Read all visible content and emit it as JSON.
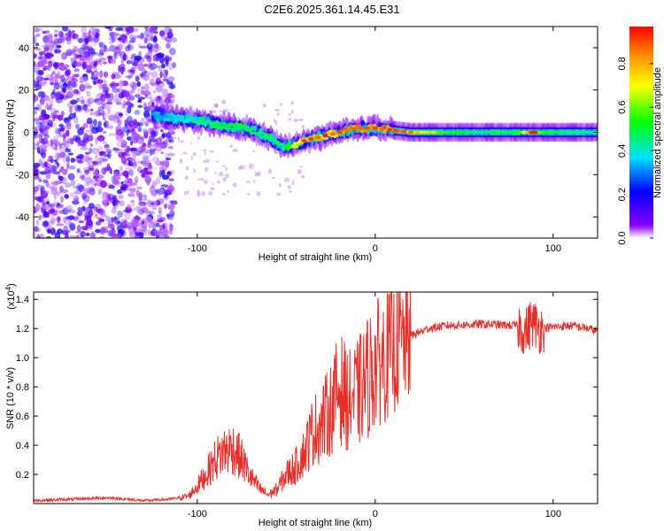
{
  "title": "C2E6.2025.361.14.45.E31",
  "chart_data": [
    {
      "type": "heatmap",
      "xlabel": "Height of straight line (km)",
      "ylabel": "Frequency (Hz)",
      "xlim": [
        -192,
        125
      ],
      "ylim": [
        -50,
        50
      ],
      "x_ticks": [
        -100,
        0,
        100
      ],
      "y_ticks": [
        -40,
        -20,
        0,
        20,
        40
      ],
      "colorbar": {
        "label": "Normalized spectral amplitude",
        "range": [
          0,
          0.97
        ],
        "ticks": [
          "0.0",
          "0.2",
          "0.4",
          "0.6",
          "0.8"
        ],
        "tick_values": [
          0.0,
          0.2,
          0.4,
          0.6,
          0.8
        ]
      },
      "noise_region_x": [
        -192,
        -113
      ],
      "signal_ridge": {
        "x": [
          -125,
          -115,
          -105,
          -95,
          -85,
          -75,
          -65,
          -58,
          -52,
          -45,
          -40,
          -35,
          -30,
          -25,
          -20,
          -15,
          -10,
          -5,
          0,
          10,
          20,
          40,
          60,
          80,
          88,
          95,
          110,
          125
        ],
        "freq": [
          8,
          7,
          6,
          5,
          3,
          2,
          0,
          -3,
          -7,
          -6,
          -4,
          -3,
          -2,
          -1,
          0,
          1,
          2,
          2,
          2,
          1,
          0,
          0,
          0,
          0,
          0,
          0,
          0,
          0
        ],
        "amplitude": [
          0.35,
          0.4,
          0.45,
          0.5,
          0.55,
          0.55,
          0.5,
          0.55,
          0.5,
          0.75,
          0.85,
          0.9,
          0.85,
          0.8,
          0.9,
          0.95,
          0.95,
          0.9,
          0.9,
          0.95,
          0.9,
          0.6,
          0.5,
          0.55,
          0.95,
          0.6,
          0.5,
          0.45
        ]
      }
    },
    {
      "type": "line",
      "xlabel": "Height of straight line (km)",
      "ylabel": "SNR (10 * v/v)",
      "y_multiplier_label": "(x10",
      "y_multiplier_exp": "4",
      "xlim": [
        -192,
        125
      ],
      "ylim": [
        0,
        1.45
      ],
      "x_ticks": [
        -100,
        0,
        100
      ],
      "y_ticks": [
        "0.2",
        "0.4",
        "0.6",
        "0.8",
        "1.0",
        "1.2",
        "1.4"
      ],
      "y_tick_values": [
        0.2,
        0.4,
        0.6,
        0.8,
        1.0,
        1.2,
        1.4
      ],
      "series": [
        {
          "name": "SNR",
          "color": "#e8302a",
          "x": [
            -192,
            -170,
            -150,
            -130,
            -115,
            -105,
            -100,
            -95,
            -90,
            -85,
            -80,
            -75,
            -70,
            -65,
            -60,
            -55,
            -50,
            -45,
            -40,
            -35,
            -30,
            -25,
            -20,
            -15,
            -10,
            -5,
            0,
            5,
            10,
            15,
            20,
            30,
            40,
            60,
            80,
            85,
            88,
            92,
            100,
            110,
            120,
            125
          ],
          "y": [
            0.02,
            0.03,
            0.04,
            0.02,
            0.03,
            0.05,
            0.12,
            0.2,
            0.3,
            0.36,
            0.38,
            0.3,
            0.18,
            0.1,
            0.06,
            0.1,
            0.2,
            0.25,
            0.35,
            0.5,
            0.55,
            0.65,
            0.8,
            0.7,
            0.75,
            0.85,
            0.95,
            1.0,
            1.05,
            1.1,
            1.15,
            1.2,
            1.22,
            1.23,
            1.22,
            1.18,
            1.25,
            1.2,
            1.21,
            1.22,
            1.2,
            1.18
          ]
        }
      ]
    }
  ]
}
